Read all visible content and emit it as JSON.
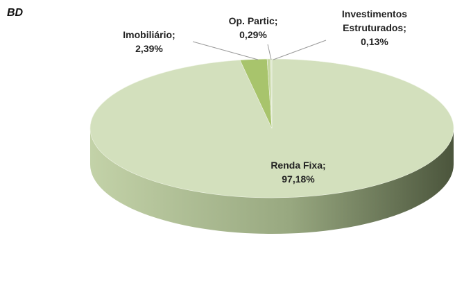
{
  "chart_data": {
    "type": "pie",
    "title": "BD",
    "categories": [
      "Renda Fixa;",
      "Imobiliário;",
      "Op. Partic;",
      "Investimentos Estruturados;"
    ],
    "values": [
      97.18,
      2.39,
      0.29,
      0.13
    ],
    "value_labels": [
      "97,18%",
      "2,39%",
      "0,29%",
      "0,13%"
    ],
    "colors": [
      "#d3e0bd",
      "#a8c46c",
      "#c5d79f",
      "#dfe9cf"
    ]
  }
}
